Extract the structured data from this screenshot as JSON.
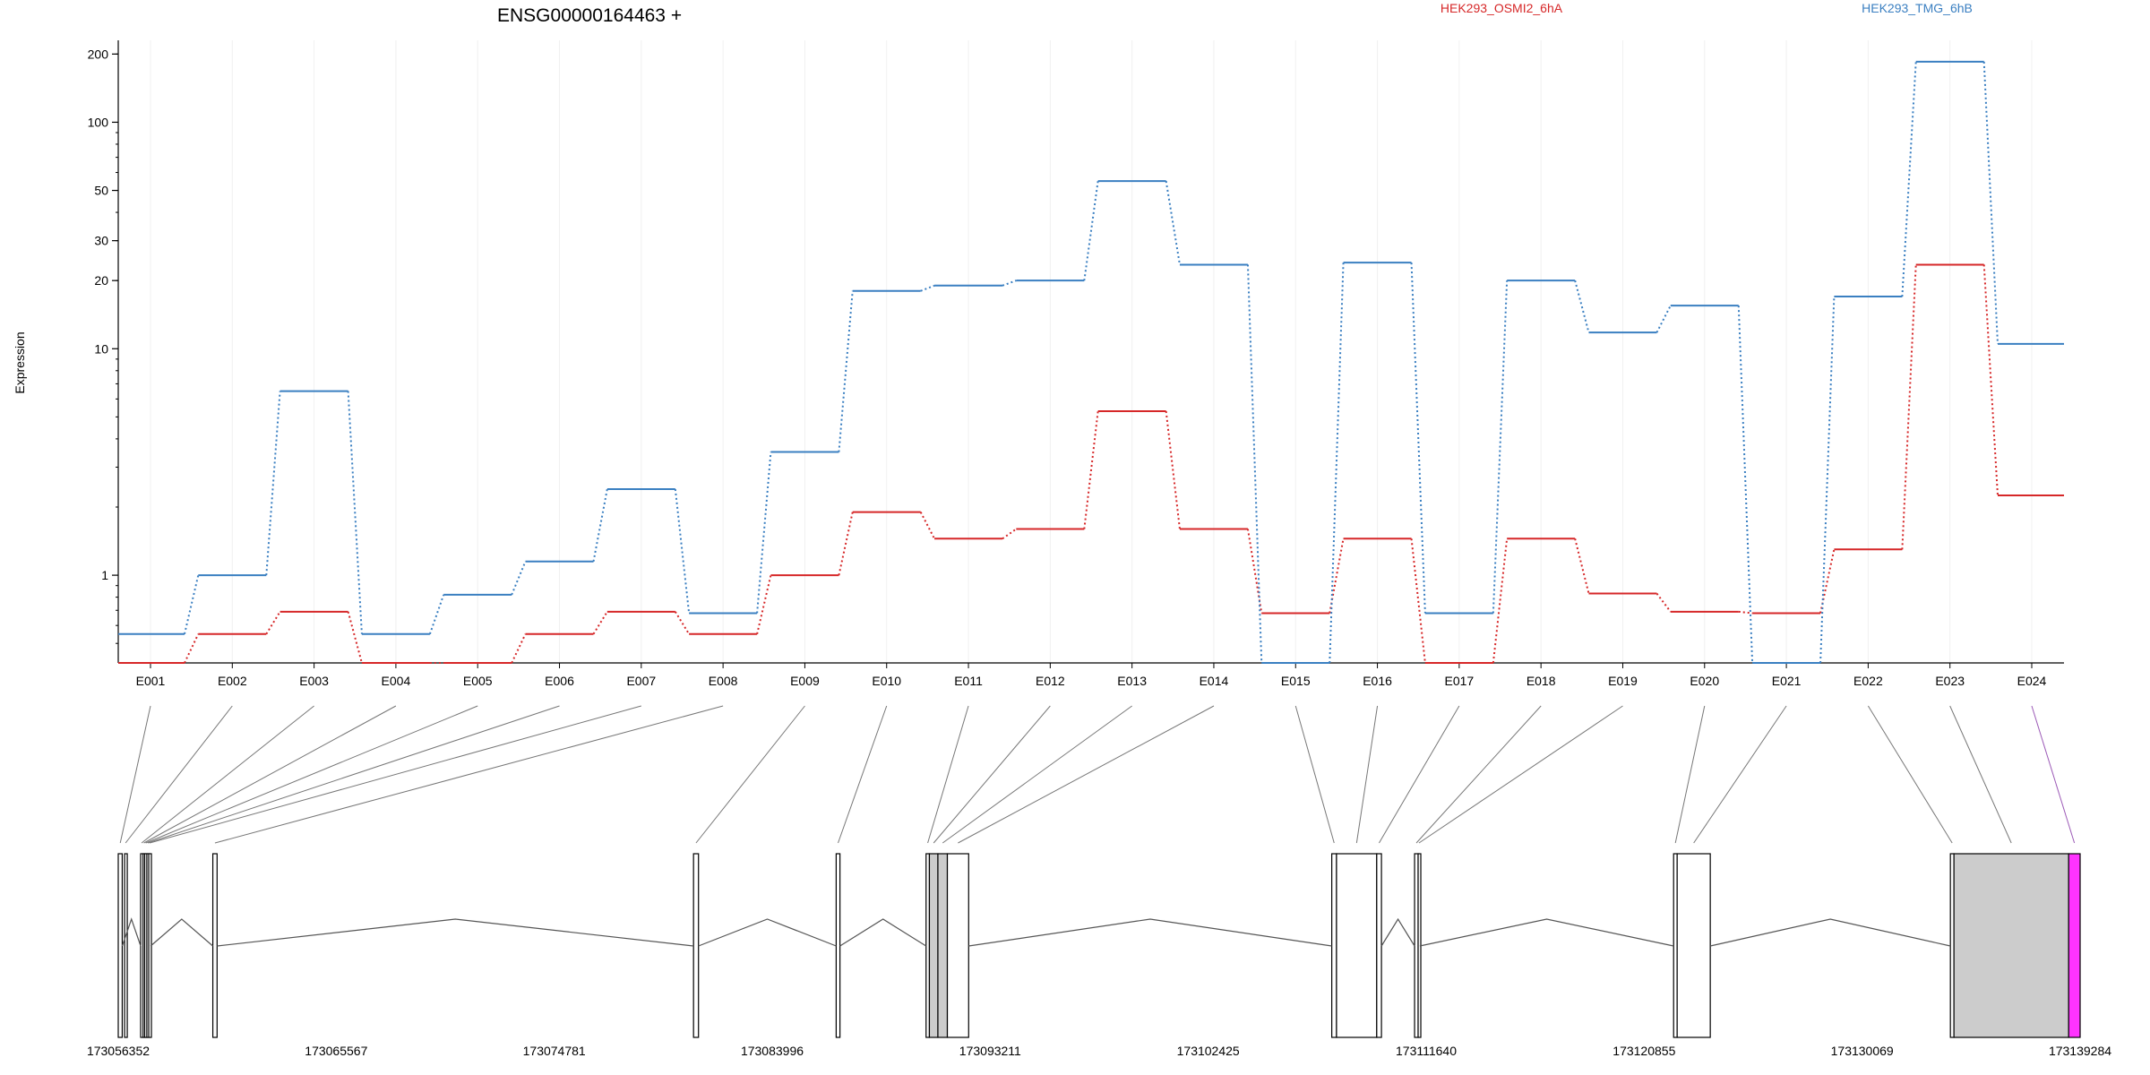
{
  "chart_data": {
    "type": "line",
    "title": "ENSG00000164463 +",
    "ylabel": "Expression",
    "xlabel": "",
    "y_scale": "log",
    "ylim": [
      0.41,
      230
    ],
    "y_ticks": [
      1,
      10,
      20,
      30,
      50,
      100,
      200
    ],
    "grid": true,
    "legend_placement": "top",
    "categories": [
      "E001",
      "E002",
      "E003",
      "E004",
      "E005",
      "E006",
      "E007",
      "E008",
      "E009",
      "E010",
      "E011",
      "E012",
      "E013",
      "E014",
      "E015",
      "E016",
      "E017",
      "E018",
      "E019",
      "E020",
      "E021",
      "E022",
      "E023",
      "E024"
    ],
    "series": [
      {
        "name": "HEK293_OSMI2_6hA",
        "color": "#d62728",
        "values": [
          0.41,
          0.55,
          0.69,
          0.41,
          0.41,
          0.55,
          0.69,
          0.55,
          1.0,
          1.9,
          1.45,
          1.6,
          5.3,
          1.6,
          0.68,
          1.45,
          0.41,
          1.45,
          0.83,
          0.69,
          0.68,
          1.3,
          23.5,
          2.25
        ]
      },
      {
        "name": "HEK293_TMG_6hB",
        "color": "#3a7fc1",
        "values": [
          0.55,
          1.0,
          6.5,
          0.55,
          0.82,
          1.15,
          2.4,
          0.68,
          3.5,
          18.0,
          19.0,
          20.0,
          55.0,
          23.5,
          0.41,
          24.0,
          0.68,
          20.0,
          11.8,
          15.5,
          0.41,
          17.0,
          185.0,
          10.5
        ]
      }
    ],
    "gene_model": {
      "coordinate_ticks": [
        "173056352",
        "173065567",
        "173074781",
        "173083996",
        "173093211",
        "173102425",
        "173111640",
        "173120855",
        "173130069",
        "173139284"
      ],
      "range": [
        173056352,
        173139284
      ],
      "exons": [
        {
          "id": "E001",
          "start": 173056352,
          "end": 173056520
        },
        {
          "id": "E002",
          "start": 173056620,
          "end": 173056700
        },
        {
          "id": "E003",
          "start": 173057300,
          "end": 173057380
        },
        {
          "id": "E004",
          "start": 173057400,
          "end": 173057470
        },
        {
          "id": "E005",
          "start": 173057470,
          "end": 173057560
        },
        {
          "id": "E006",
          "start": 173057560,
          "end": 173057640
        },
        {
          "id": "E007",
          "start": 173057640,
          "end": 173057720
        },
        {
          "id": "E008",
          "start": 173060350,
          "end": 173060530
        },
        {
          "id": "E009",
          "start": 173080670,
          "end": 173080880
        },
        {
          "id": "E010",
          "start": 173086700,
          "end": 173086860
        },
        {
          "id": "E011",
          "start": 173090500,
          "end": 173090640
        },
        {
          "id": "E012",
          "start": 173090640,
          "end": 173091000
        },
        {
          "id": "E013",
          "start": 173091000,
          "end": 173091400
        },
        {
          "id": "E014",
          "start": 173091400,
          "end": 173092300
        },
        {
          "id": "E015",
          "start": 173107650,
          "end": 173107850
        },
        {
          "id": "E016",
          "start": 173107850,
          "end": 173109550
        },
        {
          "id": "E017",
          "start": 173109550,
          "end": 173109750
        },
        {
          "id": "E018",
          "start": 173111150,
          "end": 173111300
        },
        {
          "id": "E019",
          "start": 173111300,
          "end": 173111370
        },
        {
          "id": "E020",
          "start": 173122100,
          "end": 173122250
        },
        {
          "id": "E021",
          "start": 173122250,
          "end": 173123650
        },
        {
          "id": "E022",
          "start": 173133800,
          "end": 173133950
        },
        {
          "id": "E023",
          "start": 173133950,
          "end": 173138800
        },
        {
          "id": "E024",
          "start": 173138800,
          "end": 173139284
        }
      ],
      "exon_colors": {
        "E012": "#cccccc",
        "E013": "#cccccc",
        "E023": "#cccccc",
        "E024": "#ff33ff"
      },
      "introns": [
        [
          173056520,
          173057300
        ],
        [
          173057720,
          173060350
        ],
        [
          173060530,
          173080670
        ],
        [
          173080880,
          173086700
        ],
        [
          173086860,
          173090500
        ],
        [
          173092300,
          173107650
        ],
        [
          173109750,
          173111150
        ],
        [
          173111370,
          173122100
        ],
        [
          173123650,
          173133800
        ]
      ]
    }
  }
}
